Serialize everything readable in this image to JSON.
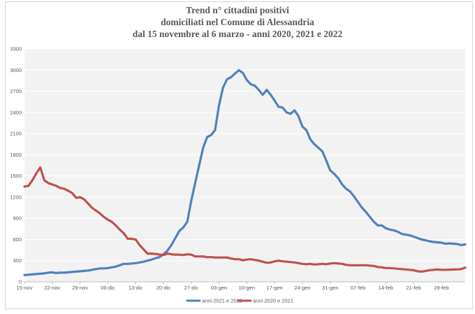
{
  "chart_data": {
    "type": "line",
    "title_lines": [
      "Trend n° cittadini positivi",
      "domiciliati nel Comune di Alessandria",
      "dal 15 novembre al 6 marzo - anni 2020, 2021 e 2022"
    ],
    "xlabel": "",
    "ylabel": "",
    "ylim": [
      0,
      3300
    ],
    "yticks": [
      0,
      300,
      600,
      900,
      1200,
      1500,
      1800,
      2100,
      2400,
      2700,
      3000,
      3300
    ],
    "xlim": [
      0,
      111
    ],
    "xticks": [
      {
        "x": 0,
        "label": "15-nov"
      },
      {
        "x": 7,
        "label": "22-nov"
      },
      {
        "x": 14,
        "label": "29-nov"
      },
      {
        "x": 21,
        "label": "06-dic"
      },
      {
        "x": 28,
        "label": "13-dic"
      },
      {
        "x": 35,
        "label": "20-dic"
      },
      {
        "x": 42,
        "label": "27-dic"
      },
      {
        "x": 49,
        "label": "03-gen"
      },
      {
        "x": 56,
        "label": "10-gen"
      },
      {
        "x": 63,
        "label": "17-gen"
      },
      {
        "x": 70,
        "label": "24-gen"
      },
      {
        "x": 77,
        "label": "31-gen"
      },
      {
        "x": 84,
        "label": "07-feb"
      },
      {
        "x": 91,
        "label": "14-feb"
      },
      {
        "x": 98,
        "label": "21-feb"
      },
      {
        "x": 105,
        "label": "28-feb"
      }
    ],
    "grid": "horizontal",
    "legend_position": "bottom",
    "series": [
      {
        "name": "anni 2021 e 2022",
        "color": "#4f81bd",
        "x": [
          0,
          1,
          2,
          3,
          4,
          5,
          6,
          7,
          8,
          9,
          10,
          11,
          12,
          13,
          14,
          15,
          16,
          17,
          18,
          19,
          20,
          21,
          22,
          23,
          24,
          25,
          26,
          27,
          28,
          29,
          30,
          31,
          32,
          33,
          34,
          35,
          36,
          37,
          38,
          39,
          40,
          41,
          42,
          43,
          44,
          45,
          46,
          47,
          48,
          49,
          50,
          51,
          52,
          53,
          54,
          55,
          56,
          57,
          58,
          59,
          60,
          61,
          62,
          63,
          64,
          65,
          66,
          67,
          68,
          69,
          70,
          71,
          72,
          73,
          74,
          75,
          76,
          77,
          78,
          79,
          80,
          81,
          82,
          83,
          84,
          85,
          86,
          87,
          88,
          89,
          90,
          91,
          92,
          93,
          94,
          95,
          96,
          97,
          98,
          99,
          100,
          101,
          102,
          103,
          104,
          105,
          106,
          107,
          108,
          109,
          110,
          111
        ],
        "values": [
          95,
          100,
          105,
          110,
          115,
          120,
          130,
          135,
          125,
          130,
          130,
          135,
          140,
          145,
          150,
          155,
          160,
          170,
          180,
          190,
          190,
          195,
          205,
          215,
          235,
          255,
          255,
          260,
          265,
          275,
          285,
          300,
          315,
          335,
          350,
          390,
          440,
          520,
          620,
          720,
          770,
          850,
          1150,
          1400,
          1650,
          1900,
          2050,
          2080,
          2150,
          2500,
          2750,
          2870,
          2900,
          2950,
          3000,
          2960,
          2860,
          2800,
          2780,
          2720,
          2650,
          2720,
          2650,
          2570,
          2480,
          2470,
          2400,
          2380,
          2430,
          2350,
          2200,
          2150,
          2020,
          1950,
          1900,
          1850,
          1720,
          1580,
          1530,
          1470,
          1380,
          1320,
          1280,
          1210,
          1130,
          1050,
          990,
          920,
          850,
          800,
          800,
          760,
          740,
          730,
          710,
          680,
          670,
          660,
          640,
          620,
          600,
          590,
          575,
          565,
          560,
          555,
          540,
          545,
          540,
          535,
          520,
          530
        ],
        "value_unit": "cittadini positivi"
      },
      {
        "name": "anni 2020 e 2021",
        "color": "#c0504d",
        "x": [
          0,
          1,
          2,
          3,
          4,
          5,
          6,
          7,
          8,
          9,
          10,
          11,
          12,
          13,
          14,
          15,
          16,
          17,
          18,
          19,
          20,
          21,
          22,
          23,
          24,
          25,
          26,
          27,
          28,
          29,
          30,
          31,
          32,
          33,
          34,
          35,
          36,
          37,
          38,
          39,
          40,
          41,
          42,
          43,
          44,
          45,
          46,
          47,
          48,
          49,
          50,
          51,
          52,
          53,
          54,
          55,
          56,
          57,
          58,
          59,
          60,
          61,
          62,
          63,
          64,
          65,
          66,
          67,
          68,
          69,
          70,
          71,
          72,
          73,
          74,
          75,
          76,
          77,
          78,
          79,
          80,
          81,
          82,
          83,
          84,
          85,
          86,
          87,
          88,
          89,
          90,
          91,
          92,
          93,
          94,
          95,
          96,
          97,
          98,
          99,
          100,
          101,
          102,
          103,
          104,
          105,
          106,
          107,
          108,
          109,
          110,
          111
        ],
        "values": [
          1350,
          1360,
          1440,
          1540,
          1620,
          1440,
          1400,
          1380,
          1360,
          1330,
          1320,
          1290,
          1260,
          1190,
          1200,
          1170,
          1110,
          1050,
          1010,
          970,
          920,
          880,
          850,
          800,
          740,
          690,
          610,
          610,
          600,
          520,
          460,
          400,
          400,
          395,
          385,
          380,
          400,
          390,
          385,
          385,
          380,
          390,
          385,
          360,
          360,
          360,
          350,
          350,
          345,
          345,
          345,
          345,
          330,
          320,
          320,
          305,
          315,
          320,
          310,
          300,
          285,
          270,
          275,
          290,
          300,
          290,
          285,
          280,
          275,
          265,
          255,
          250,
          255,
          245,
          250,
          255,
          250,
          260,
          265,
          260,
          255,
          240,
          235,
          235,
          235,
          235,
          235,
          230,
          225,
          210,
          205,
          195,
          195,
          190,
          185,
          180,
          175,
          170,
          165,
          150,
          145,
          155,
          165,
          170,
          175,
          170,
          170,
          172,
          174,
          176,
          180,
          200
        ],
        "value_unit": "cittadini positivi"
      }
    ]
  }
}
